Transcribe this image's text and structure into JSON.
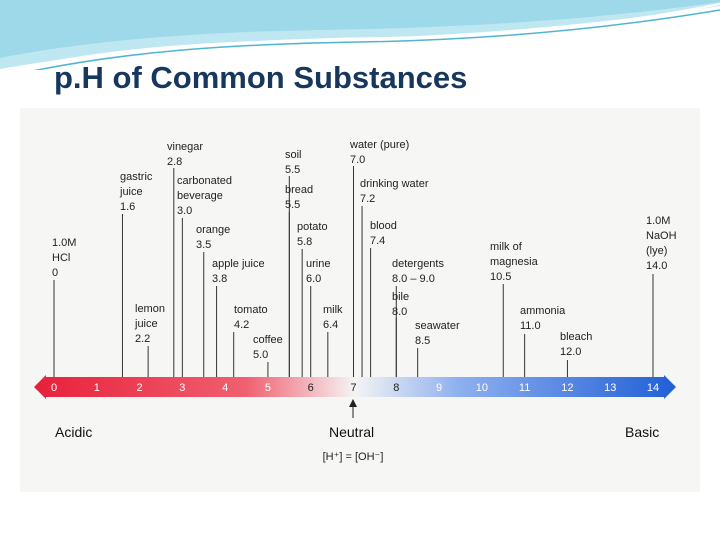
{
  "title": "p.H of Common Substances",
  "acidic_label": "Acidic",
  "neutral_label": "Neutral",
  "basic_label": "Basic",
  "neutral_formula": "[H⁺] = [OH⁻]",
  "scale_ticks": [
    "0",
    "1",
    "2",
    "3",
    "4",
    "5",
    "6",
    "7",
    "8",
    "9",
    "10",
    "11",
    "12",
    "13",
    "14"
  ],
  "colors": {
    "title": "#17375e",
    "acid": "#e8203a",
    "neutral": "#f4f4f4",
    "base": "#1f5fd6",
    "banner": "#8fd3e6"
  },
  "substances": [
    {
      "ph": 0.0,
      "lines": [
        "1.0M",
        "HCl",
        "0"
      ]
    },
    {
      "ph": 1.6,
      "lines": [
        "gastric",
        "juice",
        "1.6"
      ]
    },
    {
      "ph": 2.2,
      "lines": [
        "lemon",
        "juice",
        "2.2"
      ]
    },
    {
      "ph": 2.8,
      "lines": [
        "vinegar",
        "2.8"
      ]
    },
    {
      "ph": 3.0,
      "lines": [
        "carbonated",
        "beverage",
        "3.0"
      ]
    },
    {
      "ph": 3.5,
      "lines": [
        "orange",
        "3.5"
      ]
    },
    {
      "ph": 3.8,
      "lines": [
        "apple juice",
        "3.8"
      ]
    },
    {
      "ph": 4.2,
      "lines": [
        "tomato",
        "4.2"
      ]
    },
    {
      "ph": 5.0,
      "lines": [
        "coffee",
        "5.0"
      ]
    },
    {
      "ph": 5.5,
      "lines": [
        "soil",
        "5.5"
      ]
    },
    {
      "ph": 5.5,
      "lines": [
        "bread",
        "5.5"
      ]
    },
    {
      "ph": 5.8,
      "lines": [
        "potato",
        "5.8"
      ]
    },
    {
      "ph": 6.0,
      "lines": [
        "urine",
        "6.0"
      ]
    },
    {
      "ph": 6.4,
      "lines": [
        "milk",
        "6.4"
      ]
    },
    {
      "ph": 7.0,
      "lines": [
        "water (pure)",
        "7.0"
      ]
    },
    {
      "ph": 7.2,
      "lines": [
        "drinking water",
        "7.2"
      ]
    },
    {
      "ph": 7.4,
      "lines": [
        "blood",
        "7.4"
      ]
    },
    {
      "ph": 8.0,
      "lines": [
        "detergents",
        "8.0 – 9.0"
      ]
    },
    {
      "ph": 8.0,
      "lines": [
        "bile",
        "8.0"
      ]
    },
    {
      "ph": 8.5,
      "lines": [
        "seawater",
        "8.5"
      ]
    },
    {
      "ph": 10.5,
      "lines": [
        "milk of",
        "magnesia",
        "10.5"
      ]
    },
    {
      "ph": 11.0,
      "lines": [
        "ammonia",
        "11.0"
      ]
    },
    {
      "ph": 12.0,
      "lines": [
        "bleach",
        "12.0"
      ]
    },
    {
      "ph": 14.0,
      "lines": [
        "1.0M",
        "NaOH",
        "(lye)",
        "14.0"
      ]
    }
  ]
}
